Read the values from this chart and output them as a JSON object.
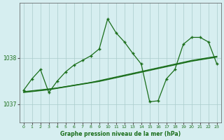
{
  "title": "Graphe pression niveau de la mer (hPa)",
  "background_color": "#d6eef0",
  "line_color": "#1a6e1a",
  "grid_color": "#aacccc",
  "ylim": [
    1036.6,
    1039.2
  ],
  "xlim": [
    -0.5,
    23.5
  ],
  "yticks": [
    1037,
    1038
  ],
  "xticks": [
    0,
    1,
    2,
    3,
    4,
    5,
    6,
    7,
    8,
    9,
    10,
    11,
    12,
    13,
    14,
    15,
    16,
    17,
    18,
    19,
    20,
    21,
    22,
    23
  ],
  "wavy_y": [
    1037.3,
    1037.55,
    1037.75,
    1037.25,
    1037.5,
    1037.7,
    1037.85,
    1037.95,
    1038.05,
    1038.2,
    1038.85,
    1038.55,
    1038.35,
    1038.1,
    1037.87,
    1037.05,
    1037.07,
    1037.55,
    1037.75,
    1038.3,
    1038.45,
    1038.45,
    1038.35,
    1037.87
  ],
  "smooth1_y": [
    1037.27,
    1037.29,
    1037.31,
    1037.33,
    1037.35,
    1037.38,
    1037.41,
    1037.44,
    1037.47,
    1037.5,
    1037.54,
    1037.58,
    1037.62,
    1037.66,
    1037.7,
    1037.74,
    1037.78,
    1037.82,
    1037.86,
    1037.9,
    1037.94,
    1037.97,
    1038.0,
    1038.03
  ],
  "smooth2_y": [
    1037.25,
    1037.27,
    1037.29,
    1037.31,
    1037.34,
    1037.37,
    1037.4,
    1037.43,
    1037.46,
    1037.49,
    1037.53,
    1037.57,
    1037.61,
    1037.65,
    1037.69,
    1037.73,
    1037.77,
    1037.81,
    1037.85,
    1037.89,
    1037.93,
    1037.96,
    1037.99,
    1038.02
  ],
  "smooth3_y": [
    1037.26,
    1037.28,
    1037.3,
    1037.32,
    1037.35,
    1037.38,
    1037.41,
    1037.44,
    1037.47,
    1037.51,
    1037.55,
    1037.59,
    1037.63,
    1037.67,
    1037.71,
    1037.75,
    1037.79,
    1037.83,
    1037.87,
    1037.91,
    1037.95,
    1037.98,
    1038.01,
    1038.04
  ]
}
